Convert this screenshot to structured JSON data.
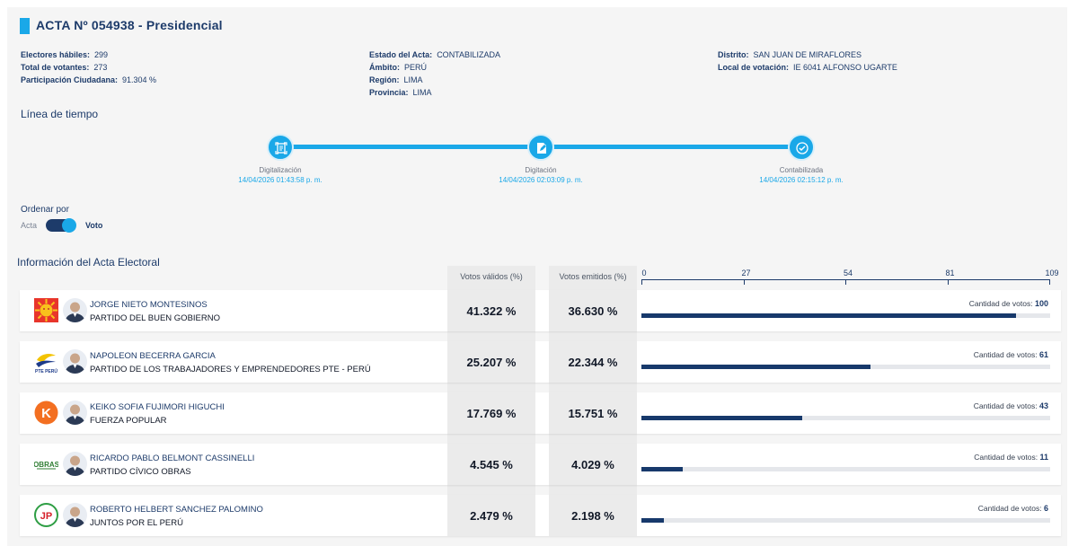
{
  "acta": {
    "title": "ACTA Nº 054938 - Presidencial",
    "col1": [
      {
        "label": "Electores hábiles:",
        "value": "299"
      },
      {
        "label": "Total de votantes:",
        "value": "273"
      },
      {
        "label": "Participación Ciudadana:",
        "value": "91.304 %"
      }
    ],
    "col2": [
      {
        "label": "Estado del Acta:",
        "value": "CONTABILIZADA"
      },
      {
        "label": "Ámbito:",
        "value": "PERÚ"
      },
      {
        "label": "Región:",
        "value": "LIMA"
      },
      {
        "label": "Provincia:",
        "value": "LIMA"
      }
    ],
    "col3": [
      {
        "label": "Distrito:",
        "value": "SAN JUAN DE MIRAFLORES"
      },
      {
        "label": "Local de votación:",
        "value": "IE 6041 ALFONSO UGARTE"
      }
    ]
  },
  "timeline": {
    "title": "Línea de tiempo",
    "steps": [
      {
        "name": "Digitalización",
        "date": "14/04/2026 01:43:58 p. m."
      },
      {
        "name": "Digitación",
        "date": "14/04/2026 02:03:09 p. m."
      },
      {
        "name": "Contabilizada",
        "date": "14/04/2026 02:15:12 p. m."
      }
    ]
  },
  "sort": {
    "title": "Ordenar por",
    "option_left": "Acta",
    "option_right": "Voto"
  },
  "results": {
    "title": "Información del Acta Electoral",
    "col_valid": "Votos válidos (%)",
    "col_emitted": "Votos emitidos (%)",
    "votes_label": "Cantidad de votos:",
    "axis_ticks": [
      "0",
      "27",
      "54",
      "81",
      "109"
    ],
    "axis_max": 109,
    "candidates": [
      {
        "name": "JORGE NIETO MONTESINOS",
        "party": "PARTIDO DEL BUEN GOBIERNO",
        "valid": "41.322 %",
        "emitted": "36.630 %",
        "votes": 100,
        "votes_text": "100"
      },
      {
        "name": "NAPOLEON BECERRA GARCIA",
        "party": "PARTIDO DE LOS TRABAJADORES Y EMPRENDEDORES PTE - PERÚ",
        "valid": "25.207 %",
        "emitted": "22.344 %",
        "votes": 61,
        "votes_text": "61"
      },
      {
        "name": "KEIKO SOFIA FUJIMORI HIGUCHI",
        "party": "FUERZA POPULAR",
        "valid": "17.769 %",
        "emitted": "15.751 %",
        "votes": 43,
        "votes_text": "43"
      },
      {
        "name": "RICARDO PABLO BELMONT CASSINELLI",
        "party": "PARTIDO CÍVICO OBRAS",
        "valid": "4.545 %",
        "emitted": "4.029 %",
        "votes": 11,
        "votes_text": "11"
      },
      {
        "name": "ROBERTO HELBERT SANCHEZ PALOMINO",
        "party": "JUNTOS POR EL PERÚ",
        "valid": "2.479 %",
        "emitted": "2.198 %",
        "votes": 6,
        "votes_text": "6"
      }
    ]
  },
  "logos": {
    "logo1_text": "",
    "logo2_text": "PTE PERÚ",
    "logo3_text": "K",
    "logo4_text": "OBRAS",
    "logo5_text": "JP"
  },
  "colors": {
    "accent": "#1aa8e8",
    "navy": "#1d3b6a",
    "bar": "#17396b"
  }
}
